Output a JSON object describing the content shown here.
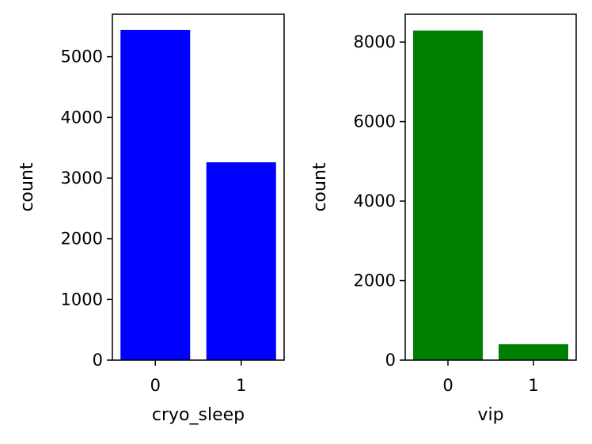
{
  "chart_data": [
    {
      "type": "bar",
      "xlabel": "cryo_sleep",
      "ylabel": "count",
      "categories": [
        "0",
        "1"
      ],
      "values": [
        5440,
        3260
      ],
      "ylim": [
        0,
        5700
      ],
      "yticks": [
        0,
        1000,
        2000,
        3000,
        4000,
        5000
      ],
      "color": "#0000ff",
      "grid": false
    },
    {
      "type": "bar",
      "xlabel": "vip",
      "ylabel": "count",
      "categories": [
        "0",
        "1"
      ],
      "values": [
        8290,
        400
      ],
      "ylim": [
        0,
        8700
      ],
      "yticks": [
        0,
        2000,
        4000,
        6000,
        8000
      ],
      "color": "#008000",
      "grid": false
    }
  ]
}
